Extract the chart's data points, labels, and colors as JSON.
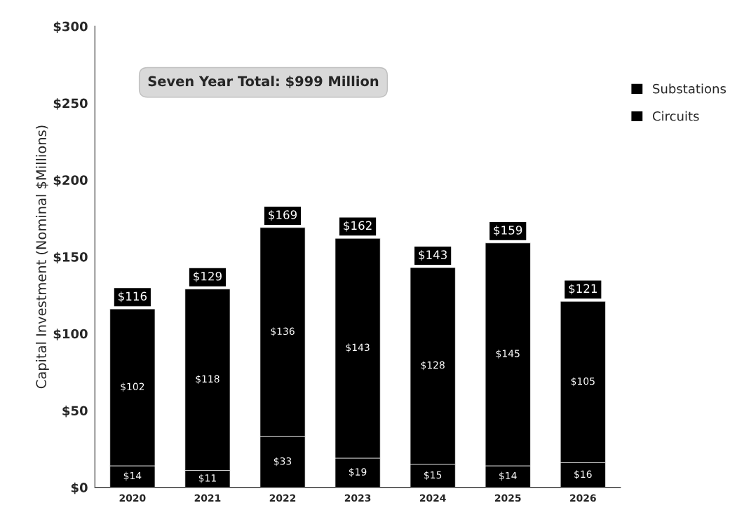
{
  "chart_data": {
    "type": "bar",
    "stacked": true,
    "ylabel": "Capital Investment (Nominal $Millions)",
    "categories": [
      "2020",
      "2021",
      "2022",
      "2023",
      "2024",
      "2025",
      "2026"
    ],
    "series": [
      {
        "name": "Substations",
        "color": "#000000",
        "values": [
          14,
          11,
          33,
          19,
          15,
          14,
          16
        ],
        "value_labels": [
          "$14",
          "$11",
          "$33",
          "$19",
          "$15",
          "$14",
          "$16"
        ]
      },
      {
        "name": "Circuits",
        "color": "#000000",
        "values": [
          102,
          118,
          136,
          143,
          128,
          145,
          105
        ],
        "value_labels": [
          "$102",
          "$118",
          "$136",
          "$143",
          "$128",
          "$145",
          "$105"
        ]
      }
    ],
    "totals": [
      "$116",
      "$129",
      "$169",
      "$162",
      "$143",
      "$159",
      "$121"
    ],
    "ylim": [
      0,
      300
    ],
    "yticks": [
      {
        "value": 0,
        "label": "$0"
      },
      {
        "value": 50,
        "label": "$50"
      },
      {
        "value": 100,
        "label": "$100"
      },
      {
        "value": 150,
        "label": "$150"
      },
      {
        "value": 200,
        "label": "$200"
      },
      {
        "value": 250,
        "label": "$250"
      },
      {
        "value": 300,
        "label": "$300"
      }
    ],
    "annotations": [
      "Seven Year Total: $999 Million"
    ],
    "grid": false,
    "legend": "top right"
  }
}
